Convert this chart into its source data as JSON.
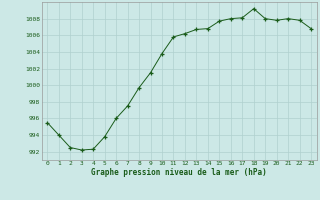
{
  "x": [
    0,
    1,
    2,
    3,
    4,
    5,
    6,
    7,
    8,
    9,
    10,
    11,
    12,
    13,
    14,
    15,
    16,
    17,
    18,
    19,
    20,
    21,
    22,
    23
  ],
  "y": [
    995.5,
    994.0,
    992.5,
    992.2,
    992.3,
    993.8,
    996.0,
    997.5,
    999.7,
    1001.5,
    1003.8,
    1005.8,
    1006.2,
    1006.7,
    1006.8,
    1007.7,
    1008.0,
    1008.1,
    1009.2,
    1008.0,
    1007.8,
    1008.0,
    1007.8,
    1006.8
  ],
  "line_color": "#1a5c1a",
  "marker_color": "#1a5c1a",
  "bg_color": "#cce8e6",
  "grid_color": "#b0d0ce",
  "xlabel": "Graphe pression niveau de la mer (hPa)",
  "xlabel_color": "#1a5c1a",
  "tick_color": "#1a5c1a",
  "ylim": [
    991.0,
    1010.0
  ],
  "yticks": [
    992,
    994,
    996,
    998,
    1000,
    1002,
    1004,
    1006,
    1008
  ],
  "xticks": [
    0,
    1,
    2,
    3,
    4,
    5,
    6,
    7,
    8,
    9,
    10,
    11,
    12,
    13,
    14,
    15,
    16,
    17,
    18,
    19,
    20,
    21,
    22,
    23
  ]
}
